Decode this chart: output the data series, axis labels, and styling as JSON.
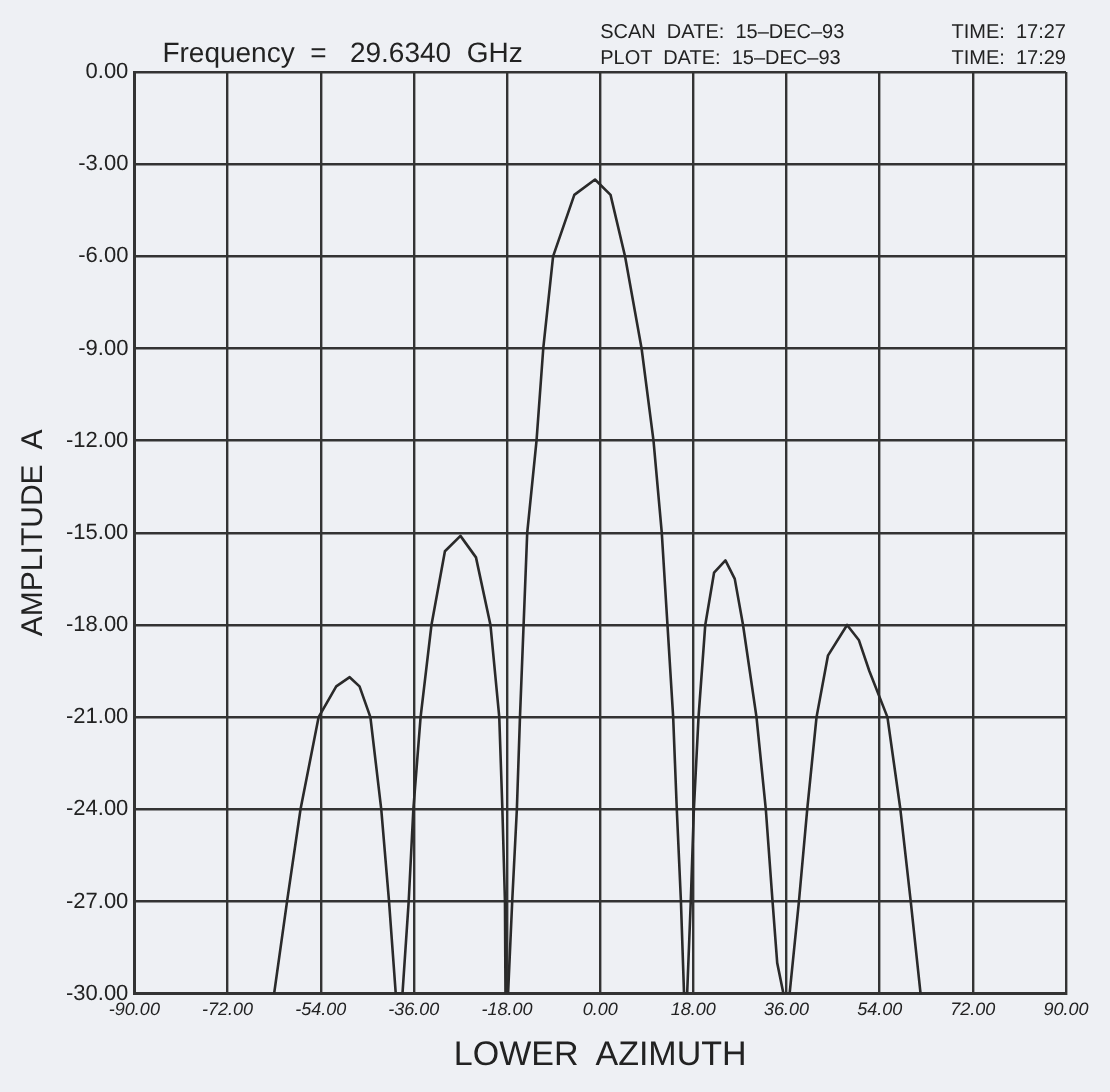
{
  "chart_data": {
    "type": "line",
    "title": "Frequency  =   29.6340  GHz",
    "xlabel": "LOWER  AZIMUTH",
    "ylabel": "AMPLITUDE  A",
    "annotations": [
      "SCAN  DATE:  15–DEC–93",
      "TIME:  17:27",
      "PLOT  DATE:  15–DEC–93",
      "TIME:  17:29"
    ],
    "series": [
      {
        "color": "#2a2a2a",
        "x": [
          -63,
          -60.5,
          -57.9,
          -54.4,
          -51,
          -48.4,
          -46.5,
          -44.4,
          -42.3,
          -40.8,
          -39.5,
          -38.2,
          -37,
          -36.1,
          -34.7,
          -32.6,
          -30,
          -27,
          -24,
          -21.2,
          -19.5,
          -18.9,
          -18.4,
          -18.3,
          -17.8,
          -17,
          -16.1,
          -15.5,
          -14.8,
          -14.1,
          -12.3,
          -11,
          -9.1,
          -5,
          -1,
          2,
          4.8,
          8,
          10.3,
          11.9,
          13,
          14.1,
          14.8,
          15.6,
          16.2,
          16.8,
          17.5,
          18.1,
          19,
          20.3,
          22,
          24.2,
          26,
          27.6,
          30.2,
          32,
          33.3,
          34.2,
          35.4,
          36.6,
          38.4,
          40,
          41.8,
          44,
          47.7,
          50,
          52,
          55.5,
          58,
          60,
          61.9
        ],
        "values": [
          -30,
          -27,
          -24,
          -21,
          -20,
          -19.7,
          -20,
          -21,
          -24,
          -27,
          -30,
          -30,
          -27,
          -24,
          -21,
          -18,
          -15.6,
          -15.1,
          -15.8,
          -18,
          -21,
          -24,
          -27,
          -30,
          -30,
          -27,
          -24,
          -21,
          -18,
          -15,
          -12,
          -9,
          -6,
          -4,
          -3.5,
          -4,
          -6,
          -9,
          -12,
          -15,
          -18,
          -21,
          -24,
          -27,
          -30,
          -30,
          -27,
          -24,
          -21,
          -18,
          -16.3,
          -15.9,
          -16.5,
          -18,
          -21,
          -24,
          -27,
          -29,
          -30,
          -30,
          -27,
          -24,
          -21,
          -19,
          -18,
          -18.5,
          -19.5,
          -21,
          -24,
          -27,
          -30
        ]
      }
    ],
    "xlim": [
      -90,
      90
    ],
    "xticks": [
      {
        "value": -90,
        "label": "-90.00"
      },
      {
        "value": -72,
        "label": "-72.00"
      },
      {
        "value": -54,
        "label": "-54.00"
      },
      {
        "value": -36,
        "label": "-36.00"
      },
      {
        "value": -18,
        "label": "-18.00"
      },
      {
        "value": 0,
        "label": "0.00"
      },
      {
        "value": 18,
        "label": "18.00"
      },
      {
        "value": 36,
        "label": "36.00"
      },
      {
        "value": 54,
        "label": "54.00"
      },
      {
        "value": 72,
        "label": "72.00"
      },
      {
        "value": 90,
        "label": "90.00"
      }
    ],
    "ylim": [
      -30,
      0
    ],
    "yticks": [
      {
        "value": -30,
        "label": "-30.00"
      },
      {
        "value": -27,
        "label": "-27.00"
      },
      {
        "value": -24,
        "label": "-24.00"
      },
      {
        "value": -21,
        "label": "-21.00"
      },
      {
        "value": -18,
        "label": "-18.00"
      },
      {
        "value": -15,
        "label": "-15.00"
      },
      {
        "value": -12,
        "label": "-12.00"
      },
      {
        "value": -9,
        "label": "-9.00"
      },
      {
        "value": -6,
        "label": "-6.00"
      },
      {
        "value": -3,
        "label": "-3.00"
      },
      {
        "value": 0,
        "label": "0.00"
      }
    ],
    "grid": true,
    "legend": false,
    "marker": "none",
    "line_style": "solid"
  }
}
